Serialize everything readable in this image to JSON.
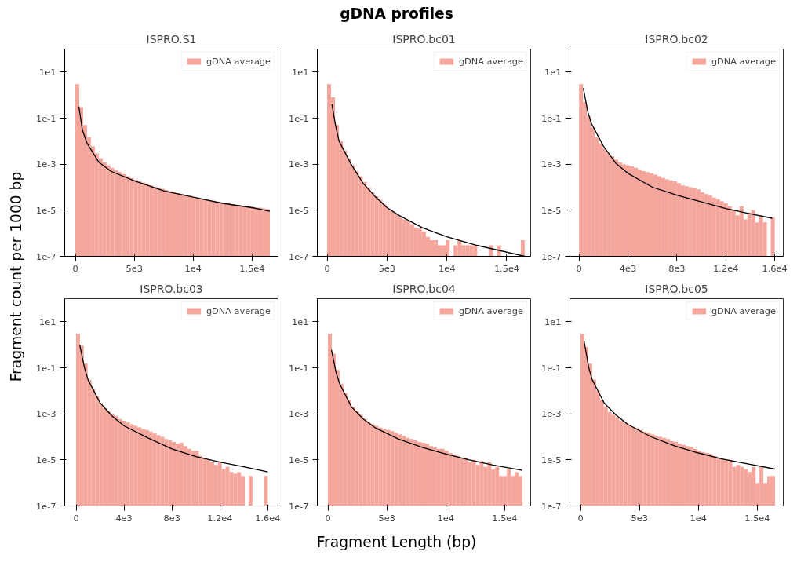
{
  "chart_data": [
    {
      "type": "other",
      "title": "gDNA profiles",
      "xlabel": "Fragment Length (bp)",
      "ylabel": "Fragment count per 1000 bp"
    },
    {
      "type": "histogram",
      "title": "ISPRO.S1",
      "legend": "top right",
      "log": true,
      "xlim": [
        -900,
        17200
      ],
      "ylim": [
        1e-07,
        100
      ],
      "xticks": [
        0,
        {
          "value": 5000,
          "label": "5e3"
        },
        {
          "value": 10000,
          "label": "1e4"
        },
        {
          "value": 15000,
          "label": "1.5e4"
        }
      ],
      "yticks": [
        {
          "value": 1e-07,
          "label": "1e-7"
        },
        {
          "value": 1e-05,
          "label": "1e-5"
        },
        {
          "value": 0.001,
          "label": "1e-3"
        },
        {
          "value": 0.1,
          "label": "1e-1"
        },
        {
          "value": 10,
          "label": "1e1"
        }
      ],
      "series": [
        {
          "type": "histogram",
          "name": "gDNA average",
          "color": "#f4a69c",
          "bins": [
            0,
            330,
            660,
            990,
            1320,
            1650,
            1980,
            2310,
            2640,
            2970,
            3300,
            3630,
            3960,
            4290,
            4620,
            4950,
            5280,
            5610,
            5940,
            6270,
            6600,
            6930,
            7260,
            7590,
            7920,
            8250,
            8580,
            8910,
            9240,
            9570,
            9900,
            10230,
            10560,
            10890,
            11220,
            11550,
            11880,
            12210,
            12540,
            12870,
            13200,
            13530,
            13860,
            14190,
            14520,
            14850,
            15180,
            15510,
            15840,
            16170,
            16500
          ],
          "values": [
            3,
            0.3,
            0.05,
            0.015,
            0.006,
            0.003,
            0.0018,
            0.0012,
            0.0009,
            0.0007,
            0.00055,
            0.00045,
            0.00037,
            0.0003,
            0.00025,
            0.00021,
            0.00018,
            0.00016,
            0.00014,
            0.00012,
            0.000105,
            9.5e-05,
            8.5e-05,
            7.5e-05,
            6.8e-05,
            6.2e-05,
            5.5e-05,
            5e-05,
            4.6e-05,
            4.2e-05,
            3.8e-05,
            3.5e-05,
            3.2e-05,
            3e-05,
            2.8e-05,
            2.6e-05,
            2.4e-05,
            2.2e-05,
            2.1e-05,
            2e-05,
            1.8e-05,
            1.7e-05,
            1.6e-05,
            1.5e-05,
            1.5e-05,
            1.4e-05,
            1.3e-05,
            1.3e-05,
            1.2e-05,
            1.1e-05
          ]
        },
        {
          "type": "line",
          "color": "#000000",
          "x": [
            300,
            600,
            1000,
            2000,
            3000,
            5000,
            7500,
            10000,
            12500,
            15000,
            16500
          ],
          "values": [
            0.32,
            0.03,
            0.008,
            0.0012,
            0.0005,
            0.00019,
            7e-05,
            3.7e-05,
            2e-05,
            1.3e-05,
            9e-06
          ]
        }
      ]
    },
    {
      "type": "histogram",
      "title": "ISPRO.bc01",
      "legend": "top right",
      "log": true,
      "xlim": [
        -820,
        17000
      ],
      "ylim": [
        1e-07,
        100
      ],
      "xticks": [
        0,
        {
          "value": 5000,
          "label": "5e3"
        },
        {
          "value": 10000,
          "label": "1e4"
        },
        {
          "value": 15000,
          "label": "1.5e4"
        }
      ],
      "yticks": [
        {
          "value": 1e-07,
          "label": "1e-7"
        },
        {
          "value": 1e-05,
          "label": "1e-5"
        },
        {
          "value": 0.001,
          "label": "1e-3"
        },
        {
          "value": 0.1,
          "label": "1e-1"
        },
        {
          "value": 10,
          "label": "1e1"
        }
      ],
      "series": [
        {
          "type": "histogram",
          "name": "gDNA average",
          "color": "#f4a69c",
          "bins": [
            0,
            330,
            660,
            990,
            1320,
            1650,
            1980,
            2310,
            2640,
            2970,
            3300,
            3630,
            3960,
            4290,
            4620,
            4950,
            5280,
            5610,
            5940,
            6270,
            6600,
            6930,
            7260,
            7590,
            7920,
            8250,
            8580,
            8910,
            9240,
            9570,
            9900,
            10230,
            10560,
            10890,
            11220,
            11550,
            11880,
            12210,
            12540,
            12870,
            13200,
            13530,
            13860,
            14190,
            14520,
            14850,
            15180,
            15510,
            15840,
            16170,
            16500
          ],
          "values": [
            3,
            0.8,
            0.05,
            0.01,
            0.004,
            0.0018,
            0.0009,
            0.0005,
            0.0003,
            0.00017,
            0.0001,
            6e-05,
            4e-05,
            2.8e-05,
            1.8e-05,
            1.2e-05,
            9e-06,
            7e-06,
            5e-06,
            4e-06,
            3.5e-06,
            2.5e-06,
            1.8e-06,
            1.6e-06,
            1.2e-06,
            7e-07,
            5e-07,
            5e-07,
            3e-07,
            3e-07,
            5e-07,
            null,
            3e-07,
            5e-07,
            3e-07,
            3e-07,
            3e-07,
            3e-07,
            null,
            null,
            null,
            3e-07,
            null,
            3e-07,
            null,
            null,
            null,
            null,
            null,
            5e-07
          ]
        },
        {
          "type": "line",
          "color": "#000000",
          "x": [
            400,
            700,
            1000,
            2000,
            3000,
            4000,
            5000,
            6000,
            8000,
            10000,
            12500,
            16500
          ],
          "values": [
            0.4,
            0.05,
            0.01,
            0.001,
            0.00015,
            4e-05,
            1.3e-05,
            6e-06,
            1.7e-06,
            7e-07,
            3e-07,
            1e-07
          ]
        }
      ]
    },
    {
      "type": "histogram",
      "title": "ISPRO.bc02",
      "legend": "top right",
      "log": true,
      "xlim": [
        -750,
        16700
      ],
      "ylim": [
        1e-07,
        100
      ],
      "xticks": [
        0,
        {
          "value": 4000,
          "label": "4e3"
        },
        {
          "value": 8000,
          "label": "8e3"
        },
        {
          "value": 12000,
          "label": "1.2e4"
        },
        {
          "value": 16000,
          "label": "1.6e4"
        }
      ],
      "yticks": [
        {
          "value": 1e-07,
          "label": "1e-7"
        },
        {
          "value": 1e-05,
          "label": "1e-5"
        },
        {
          "value": 0.001,
          "label": "1e-3"
        },
        {
          "value": 0.1,
          "label": "1e-1"
        },
        {
          "value": 10,
          "label": "1e1"
        }
      ],
      "series": [
        {
          "type": "histogram",
          "name": "gDNA average",
          "color": "#f4a69c",
          "bins": [
            0,
            320,
            640,
            960,
            1280,
            1600,
            1920,
            2240,
            2560,
            2880,
            3200,
            3520,
            3840,
            4160,
            4480,
            4800,
            5120,
            5440,
            5760,
            6080,
            6400,
            6720,
            7040,
            7360,
            7680,
            8000,
            8320,
            8640,
            8960,
            9280,
            9600,
            9920,
            10240,
            10560,
            10880,
            11200,
            11520,
            11840,
            12160,
            12480,
            12800,
            13120,
            13440,
            13760,
            14080,
            14400,
            14720,
            15040,
            15360,
            15680,
            16000
          ],
          "values": [
            3,
            0.5,
            0.12,
            0.04,
            0.015,
            0.008,
            0.005,
            0.003,
            0.0022,
            0.0016,
            0.0012,
            0.001,
            0.0009,
            0.0008,
            0.0007,
            0.0006,
            0.0005,
            0.00045,
            0.0004,
            0.00035,
            0.0003,
            0.00025,
            0.00022,
            0.0002,
            0.00018,
            0.00015,
            0.00012,
            0.00011,
            0.0001,
            9e-05,
            8e-05,
            6e-05,
            5e-05,
            4.5e-05,
            3.5e-05,
            3e-05,
            2.5e-05,
            2e-05,
            1.5e-05,
            1e-05,
            6e-06,
            1.5e-05,
            4e-06,
            8e-06,
            1e-05,
            3e-06,
            6e-06,
            3e-06,
            null,
            5e-06
          ]
        },
        {
          "type": "line",
          "color": "#000000",
          "x": [
            350,
            700,
            1000,
            2000,
            3000,
            4000,
            6000,
            8000,
            10000,
            12000,
            14000,
            15800
          ],
          "values": [
            2,
            0.2,
            0.06,
            0.006,
            0.0011,
            0.0004,
            0.0001,
            4.5e-05,
            2.3e-05,
            1.2e-05,
            7e-06,
            4.5e-06
          ]
        }
      ]
    },
    {
      "type": "histogram",
      "title": "ISPRO.bc03",
      "legend": "top right",
      "log": true,
      "xlim": [
        -950,
        16860
      ],
      "ylim": [
        1e-07,
        100
      ],
      "xticks": [
        0,
        {
          "value": 4000,
          "label": "4e3"
        },
        {
          "value": 8000,
          "label": "8e3"
        },
        {
          "value": 12000,
          "label": "1.2e4"
        },
        {
          "value": 16000,
          "label": "1.6e4"
        }
      ],
      "yticks": [
        {
          "value": 1e-07,
          "label": "1e-7"
        },
        {
          "value": 1e-05,
          "label": "1e-5"
        },
        {
          "value": 0.001,
          "label": "1e-3"
        },
        {
          "value": 0.1,
          "label": "1e-1"
        },
        {
          "value": 10,
          "label": "1e1"
        }
      ],
      "series": [
        {
          "type": "histogram",
          "name": "gDNA average",
          "color": "#f4a69c",
          "bins": [
            0,
            320,
            640,
            960,
            1280,
            1600,
            1920,
            2240,
            2560,
            2880,
            3200,
            3520,
            3840,
            4160,
            4480,
            4800,
            5120,
            5440,
            5760,
            6080,
            6400,
            6720,
            7040,
            7360,
            7680,
            8000,
            8320,
            8640,
            8960,
            9280,
            9600,
            9920,
            10240,
            10560,
            10880,
            11200,
            11520,
            11840,
            12160,
            12480,
            12800,
            13120,
            13440,
            13760,
            14080,
            14400,
            14720,
            15040,
            15360,
            15680,
            16000
          ],
          "values": [
            3,
            0.9,
            0.15,
            0.03,
            0.012,
            0.006,
            0.003,
            0.0018,
            0.0013,
            0.001,
            0.0008,
            0.0006,
            0.0005,
            0.00042,
            0.00035,
            0.0003,
            0.00026,
            0.00022,
            0.0002,
            0.00017,
            0.00014,
            0.00012,
            0.0001,
            8e-05,
            7e-05,
            6e-05,
            5e-05,
            5.5e-05,
            4e-05,
            3e-05,
            2.5e-05,
            2.5e-05,
            1.5e-05,
            1.2e-05,
            1e-05,
            8e-06,
            6e-06,
            8e-06,
            4e-06,
            5e-06,
            3e-06,
            2.5e-06,
            3e-06,
            2e-06,
            null,
            2e-06,
            null,
            null,
            null,
            2e-06
          ]
        },
        {
          "type": "line",
          "color": "#000000",
          "x": [
            300,
            700,
            1000,
            2000,
            3000,
            4000,
            6000,
            8000,
            10000,
            12000,
            14000,
            16000
          ],
          "values": [
            1,
            0.1,
            0.03,
            0.003,
            0.0008,
            0.0003,
            9e-05,
            3e-05,
            1.4e-05,
            8e-06,
            5e-06,
            3e-06
          ]
        }
      ]
    },
    {
      "type": "histogram",
      "title": "ISPRO.bc04",
      "legend": "top right",
      "log": true,
      "xlim": [
        -900,
        17200
      ],
      "ylim": [
        1e-07,
        100
      ],
      "xticks": [
        0,
        {
          "value": 5000,
          "label": "5e3"
        },
        {
          "value": 10000,
          "label": "1e4"
        },
        {
          "value": 15000,
          "label": "1.5e4"
        }
      ],
      "yticks": [
        {
          "value": 1e-07,
          "label": "1e-7"
        },
        {
          "value": 1e-05,
          "label": "1e-5"
        },
        {
          "value": 0.001,
          "label": "1e-3"
        },
        {
          "value": 0.1,
          "label": "1e-1"
        },
        {
          "value": 10,
          "label": "1e1"
        }
      ],
      "series": [
        {
          "type": "histogram",
          "name": "gDNA average",
          "color": "#f4a69c",
          "bins": [
            0,
            330,
            660,
            990,
            1320,
            1650,
            1980,
            2310,
            2640,
            2970,
            3300,
            3630,
            3960,
            4290,
            4620,
            4950,
            5280,
            5610,
            5940,
            6270,
            6600,
            6930,
            7260,
            7590,
            7920,
            8250,
            8580,
            8910,
            9240,
            9570,
            9900,
            10230,
            10560,
            10890,
            11220,
            11550,
            11880,
            12210,
            12540,
            12870,
            13200,
            13530,
            13860,
            14190,
            14520,
            14850,
            15180,
            15510,
            15840,
            16170,
            16500
          ],
          "values": [
            3,
            0.4,
            0.08,
            0.02,
            0.008,
            0.004,
            0.002,
            0.0013,
            0.0009,
            0.0006,
            0.00045,
            0.00035,
            0.0003,
            0.00025,
            0.00022,
            0.0002,
            0.00018,
            0.00015,
            0.00013,
            0.00011,
            9e-05,
            8e-05,
            7e-05,
            6e-05,
            5.5e-05,
            5e-05,
            4e-05,
            3.5e-05,
            3e-05,
            3e-05,
            2.5e-05,
            2e-05,
            1.7e-05,
            1.5e-05,
            1.2e-05,
            1.2e-05,
            8e-06,
            1e-05,
            6e-06,
            9e-06,
            5e-06,
            8e-06,
            4e-06,
            5e-06,
            2e-06,
            2e-06,
            4e-06,
            2e-06,
            3e-06,
            2e-06
          ]
        },
        {
          "type": "line",
          "color": "#000000",
          "x": [
            300,
            700,
            1000,
            2000,
            3000,
            4000,
            6000,
            8000,
            10000,
            12000,
            14000,
            16500
          ],
          "values": [
            0.6,
            0.06,
            0.02,
            0.002,
            0.0006,
            0.00025,
            8e-05,
            3.5e-05,
            1.8e-05,
            1e-05,
            6e-06,
            3.5e-06
          ]
        }
      ]
    },
    {
      "type": "histogram",
      "title": "ISPRO.bc05",
      "legend": "top right",
      "log": true,
      "xlim": [
        -900,
        17200
      ],
      "ylim": [
        1e-07,
        100
      ],
      "xticks": [
        0,
        {
          "value": 5000,
          "label": "5e3"
        },
        {
          "value": 10000,
          "label": "1e4"
        },
        {
          "value": 15000,
          "label": "1.5e4"
        }
      ],
      "yticks": [
        {
          "value": 1e-07,
          "label": "1e-7"
        },
        {
          "value": 1e-05,
          "label": "1e-5"
        },
        {
          "value": 0.001,
          "label": "1e-3"
        },
        {
          "value": 0.1,
          "label": "1e-1"
        },
        {
          "value": 10,
          "label": "1e1"
        }
      ],
      "series": [
        {
          "type": "histogram",
          "name": "gDNA average",
          "color": "#f4a69c",
          "bins": [
            0,
            330,
            660,
            990,
            1320,
            1650,
            1980,
            2310,
            2640,
            2970,
            3300,
            3630,
            3960,
            4290,
            4620,
            4950,
            5280,
            5610,
            5940,
            6270,
            6600,
            6930,
            7260,
            7590,
            7920,
            8250,
            8580,
            8910,
            9240,
            9570,
            9900,
            10230,
            10560,
            10890,
            11220,
            11550,
            11880,
            12210,
            12540,
            12870,
            13200,
            13530,
            13860,
            14190,
            14520,
            14850,
            15180,
            15510,
            15840,
            16170,
            16500
          ],
          "values": [
            3,
            0.8,
            0.15,
            0.03,
            0.01,
            0.004,
            0.002,
            0.0012,
            0.0009,
            0.0007,
            0.0005,
            0.0004,
            0.00033,
            0.00028,
            0.00024,
            0.0002,
            0.00017,
            0.00015,
            0.00013,
            0.00011,
            0.0001,
            9e-05,
            8e-05,
            6.5e-05,
            6e-05,
            5e-05,
            4.5e-05,
            4e-05,
            3.5e-05,
            3e-05,
            2.5e-05,
            2.2e-05,
            2e-05,
            1.8e-05,
            1.5e-05,
            1.2e-05,
            1.1e-05,
            1e-05,
            1e-05,
            5e-06,
            6e-06,
            5e-06,
            4e-06,
            3e-06,
            5e-06,
            1e-06,
            5e-06,
            1e-06,
            2e-06,
            2e-06
          ]
        },
        {
          "type": "line",
          "color": "#000000",
          "x": [
            300,
            700,
            1000,
            2000,
            3000,
            4000,
            6000,
            8000,
            10000,
            12000,
            14000,
            16500
          ],
          "values": [
            1.5,
            0.1,
            0.03,
            0.003,
            0.0009,
            0.00035,
            0.0001,
            4e-05,
            2e-05,
            1.1e-05,
            7e-06,
            4e-06
          ]
        }
      ]
    }
  ]
}
